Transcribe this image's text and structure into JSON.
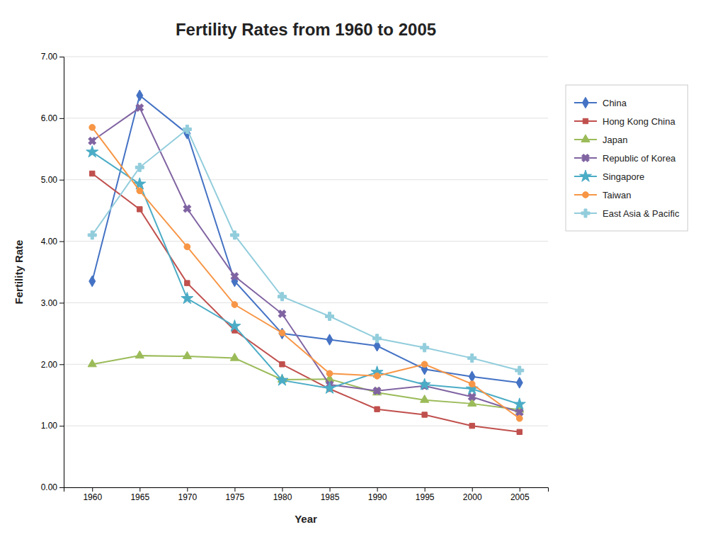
{
  "chart_data": {
    "type": "line",
    "title": "Fertility Rates from 1960 to 2005",
    "xlabel": "Year",
    "ylabel": "Fertility Rate",
    "x": [
      1960,
      1965,
      1970,
      1975,
      1980,
      1985,
      1990,
      1995,
      2000,
      2005
    ],
    "series": [
      {
        "name": "China",
        "color": "#4472C4",
        "marker": "diamond",
        "values": [
          3.35,
          6.37,
          5.75,
          3.35,
          2.5,
          2.4,
          2.3,
          1.92,
          1.8,
          1.7
        ]
      },
      {
        "name": "Hong Kong China",
        "color": "#C0504D",
        "marker": "square",
        "values": [
          5.1,
          4.52,
          3.32,
          2.55,
          2.0,
          1.6,
          1.27,
          1.18,
          1.0,
          0.9
        ]
      },
      {
        "name": "Japan",
        "color": "#9BBB59",
        "marker": "triangle",
        "values": [
          2.0,
          2.14,
          2.13,
          2.1,
          1.75,
          1.76,
          1.54,
          1.42,
          1.36,
          1.26
        ]
      },
      {
        "name": "Republic of Korea",
        "color": "#8064A2",
        "marker": "x",
        "values": [
          5.63,
          6.17,
          4.53,
          3.43,
          2.82,
          1.67,
          1.57,
          1.65,
          1.47,
          1.22
        ]
      },
      {
        "name": "Singapore",
        "color": "#4BACC6",
        "marker": "star",
        "values": [
          5.45,
          4.93,
          3.07,
          2.62,
          1.74,
          1.61,
          1.87,
          1.67,
          1.6,
          1.35
        ]
      },
      {
        "name": "Taiwan",
        "color": "#F79646",
        "marker": "circle",
        "values": [
          5.85,
          4.82,
          3.91,
          2.97,
          2.51,
          1.85,
          1.81,
          2.0,
          1.68,
          1.12
        ]
      },
      {
        "name": "East Asia & Pacific",
        "color": "#92CDDC",
        "marker": "plus",
        "values": [
          4.1,
          5.2,
          5.82,
          4.1,
          3.1,
          2.78,
          2.42,
          2.27,
          2.1,
          1.9
        ]
      }
    ],
    "xlim": [
      1957,
      2008
    ],
    "xticks": [
      1960,
      1965,
      1970,
      1975,
      1980,
      1985,
      1990,
      1995,
      2000,
      2005
    ],
    "ylim": [
      0.0,
      7.0
    ],
    "yticks": [
      {
        "value": 0.0,
        "label": "0.00"
      },
      {
        "value": 1.0,
        "label": "1.00"
      },
      {
        "value": 2.0,
        "label": "2.00"
      },
      {
        "value": 3.0,
        "label": "3.00"
      },
      {
        "value": 4.0,
        "label": "4.00"
      },
      {
        "value": 5.0,
        "label": "5.00"
      },
      {
        "value": 6.0,
        "label": "6.00"
      },
      {
        "value": 7.0,
        "label": "7.00"
      }
    ],
    "grid": "y",
    "legend": "right"
  }
}
